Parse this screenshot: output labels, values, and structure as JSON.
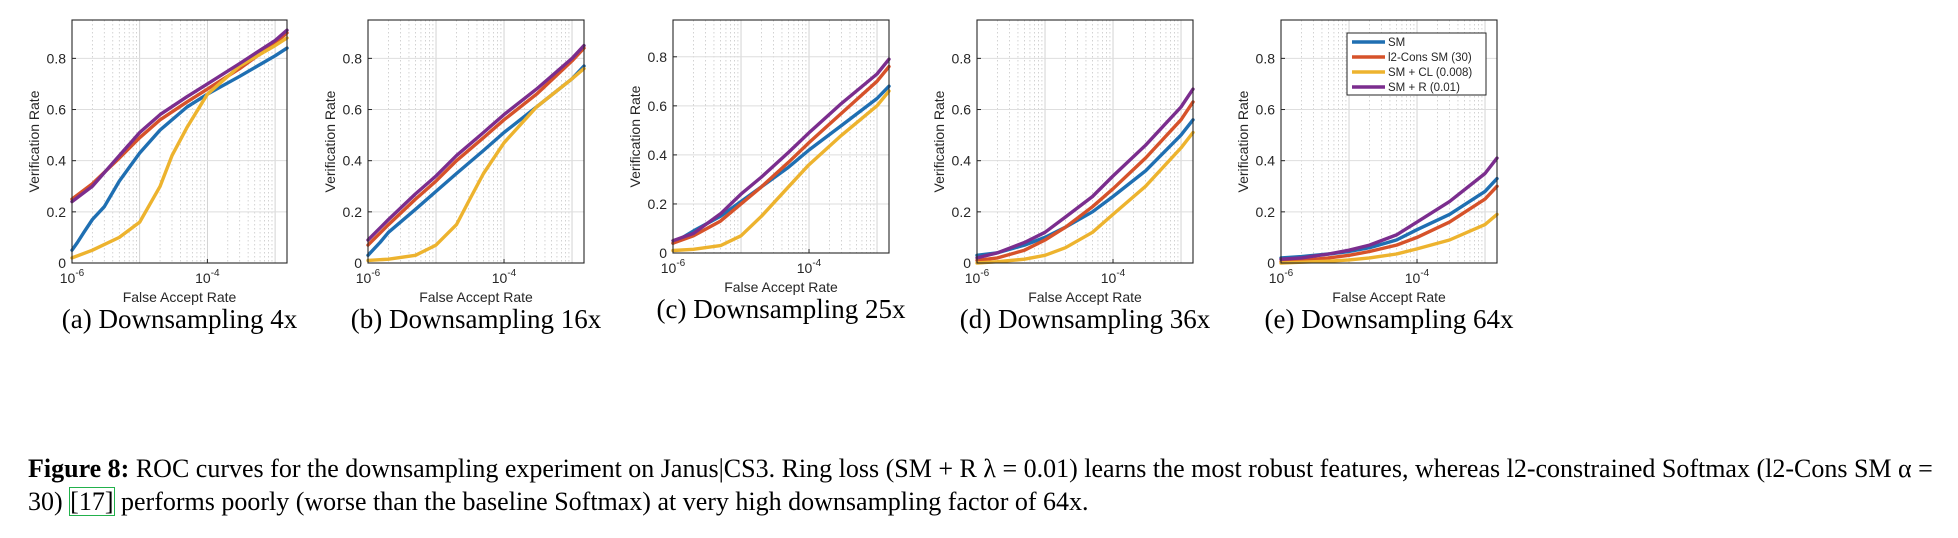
{
  "figure": {
    "caption_label": "Figure 8:",
    "caption_part1": "ROC curves for the downsampling experiment on Janus|CS3. Ring loss (SM + R λ = 0.01) learns the most robust features, whereas l2-constrained Softmax (l2-Cons SM α = 30)",
    "caption_ref": "[17]",
    "caption_part2": "performs poorly (worse than the baseline Softmax) at very high downsampling factor of 64x."
  },
  "colors": {
    "SM": "#1f6fb2",
    "l2-Cons SM (30)": "#d6522a",
    "SM + CL (0.008)": "#edb32e",
    "SM + R (0.01)": "#7b2d8e",
    "grid": "#c8c8c8"
  },
  "legend": {
    "entries": [
      "SM",
      "l2-Cons SM (30)",
      "SM + CL (0.008)",
      "SM + R (0.01)"
    ],
    "shown_in_panel": 4,
    "position": "top-right"
  },
  "chart_data": [
    {
      "type": "line",
      "caption": "(a)  Downsampling 4x",
      "xlabel": "False Accept Rate",
      "ylabel": "Verification Rate",
      "x_scale": "log",
      "xlim": [
        1e-06,
        0.0015
      ],
      "ylim": [
        0,
        0.95
      ],
      "x_ticks": [
        {
          "value": 1e-06,
          "base": "10",
          "exp": "-6"
        },
        {
          "value": 0.0001,
          "base": "10",
          "exp": "-4"
        }
      ],
      "y_ticks": [
        "0",
        "0.2",
        "0.4",
        "0.6",
        "0.8"
      ],
      "grid": true,
      "series": [
        {
          "name": "SM",
          "x": [
            1e-06,
            1.2e-06,
            1.5e-06,
            2e-06,
            3e-06,
            5e-06,
            1e-05,
            2e-05,
            5e-05,
            0.0001,
            0.0003,
            0.001,
            0.0015
          ],
          "y": [
            0.05,
            0.08,
            0.12,
            0.17,
            0.22,
            0.32,
            0.43,
            0.52,
            0.61,
            0.66,
            0.73,
            0.81,
            0.84
          ]
        },
        {
          "name": "l2-Cons SM (30)",
          "x": [
            1e-06,
            2e-06,
            5e-06,
            1e-05,
            2e-05,
            5e-05,
            0.0001,
            0.0003,
            0.001,
            0.0015
          ],
          "y": [
            0.25,
            0.31,
            0.41,
            0.49,
            0.56,
            0.63,
            0.68,
            0.76,
            0.86,
            0.9
          ]
        },
        {
          "name": "SM + CL (0.008)",
          "x": [
            1e-06,
            2e-06,
            5e-06,
            1e-05,
            2e-05,
            3e-05,
            5e-05,
            0.0001,
            0.0003,
            0.001,
            0.0015
          ],
          "y": [
            0.02,
            0.05,
            0.1,
            0.16,
            0.3,
            0.42,
            0.53,
            0.66,
            0.77,
            0.85,
            0.88
          ]
        },
        {
          "name": "SM + R (0.01)",
          "x": [
            1e-06,
            2e-06,
            5e-06,
            1e-05,
            2e-05,
            5e-05,
            0.0001,
            0.0003,
            0.001,
            0.0015
          ],
          "y": [
            0.24,
            0.3,
            0.42,
            0.51,
            0.58,
            0.65,
            0.7,
            0.78,
            0.87,
            0.91
          ]
        }
      ]
    },
    {
      "type": "line",
      "caption": "(b)  Downsampling 16x",
      "xlabel": "False Accept Rate",
      "ylabel": "Verification Rate",
      "x_scale": "log",
      "xlim": [
        1e-06,
        0.0015
      ],
      "ylim": [
        0,
        0.95
      ],
      "x_ticks": [
        {
          "value": 1e-06,
          "base": "10",
          "exp": "-6"
        },
        {
          "value": 0.0001,
          "base": "10",
          "exp": "-4"
        }
      ],
      "y_ticks": [
        "0",
        "0.2",
        "0.4",
        "0.6",
        "0.8"
      ],
      "grid": true,
      "series": [
        {
          "name": "SM",
          "x": [
            1e-06,
            1.5e-06,
            2e-06,
            5e-06,
            1e-05,
            2e-05,
            5e-05,
            0.0001,
            0.0003,
            0.001,
            0.0015
          ],
          "y": [
            0.03,
            0.08,
            0.12,
            0.21,
            0.28,
            0.35,
            0.44,
            0.51,
            0.61,
            0.72,
            0.77
          ]
        },
        {
          "name": "l2-Cons SM (30)",
          "x": [
            1e-06,
            2e-06,
            5e-06,
            1e-05,
            2e-05,
            5e-05,
            0.0001,
            0.0003,
            0.001,
            0.0015
          ],
          "y": [
            0.07,
            0.15,
            0.25,
            0.32,
            0.4,
            0.49,
            0.56,
            0.66,
            0.79,
            0.84
          ]
        },
        {
          "name": "SM + CL (0.008)",
          "x": [
            1e-06,
            2e-06,
            5e-06,
            1e-05,
            2e-05,
            3e-05,
            5e-05,
            0.0001,
            0.0003,
            0.001,
            0.0015
          ],
          "y": [
            0.01,
            0.015,
            0.03,
            0.07,
            0.15,
            0.24,
            0.35,
            0.47,
            0.61,
            0.72,
            0.76
          ]
        },
        {
          "name": "SM + R (0.01)",
          "x": [
            1e-06,
            2e-06,
            5e-06,
            1e-05,
            2e-05,
            5e-05,
            0.0001,
            0.0003,
            0.001,
            0.0015
          ],
          "y": [
            0.09,
            0.17,
            0.27,
            0.34,
            0.42,
            0.51,
            0.58,
            0.68,
            0.8,
            0.85
          ]
        }
      ]
    },
    {
      "type": "line",
      "caption": "(c)  Downsampling 25x",
      "xlabel": "False Accept Rate",
      "ylabel": "Verification Rate",
      "x_scale": "log",
      "xlim": [
        1e-06,
        0.0015
      ],
      "ylim": [
        0,
        0.95
      ],
      "x_ticks": [
        {
          "value": 1e-06,
          "base": "10",
          "exp": "-6"
        },
        {
          "value": 0.0001,
          "base": "10",
          "exp": "-4"
        }
      ],
      "y_ticks": [
        "0",
        "0.2",
        "0.4",
        "0.6",
        "0.8"
      ],
      "grid": true,
      "series": [
        {
          "name": "SM",
          "x": [
            1e-06,
            2e-06,
            5e-06,
            1e-05,
            2e-05,
            5e-05,
            0.0001,
            0.0003,
            0.001,
            0.0015
          ],
          "y": [
            0.04,
            0.09,
            0.15,
            0.21,
            0.27,
            0.35,
            0.42,
            0.52,
            0.63,
            0.68
          ]
        },
        {
          "name": "l2-Cons SM (30)",
          "x": [
            1e-06,
            2e-06,
            5e-06,
            1e-05,
            2e-05,
            5e-05,
            0.0001,
            0.0003,
            0.001,
            0.0015
          ],
          "y": [
            0.04,
            0.07,
            0.13,
            0.2,
            0.27,
            0.37,
            0.45,
            0.57,
            0.7,
            0.76
          ]
        },
        {
          "name": "SM + CL (0.008)",
          "x": [
            1e-06,
            2e-06,
            5e-06,
            1e-05,
            2e-05,
            5e-05,
            0.0001,
            0.0003,
            0.001,
            0.0015
          ],
          "y": [
            0.01,
            0.015,
            0.03,
            0.07,
            0.15,
            0.27,
            0.36,
            0.48,
            0.6,
            0.66
          ]
        },
        {
          "name": "SM + R (0.01)",
          "x": [
            1e-06,
            2e-06,
            5e-06,
            1e-05,
            2e-05,
            5e-05,
            0.0001,
            0.0003,
            0.001,
            0.0015
          ],
          "y": [
            0.05,
            0.08,
            0.16,
            0.24,
            0.31,
            0.41,
            0.49,
            0.61,
            0.73,
            0.79
          ]
        }
      ]
    },
    {
      "type": "line",
      "caption": "(d)  Downsampling 36x",
      "xlabel": "False Accept Rate",
      "ylabel": "Verification Rate",
      "x_scale": "log",
      "xlim": [
        1e-06,
        0.0015
      ],
      "ylim": [
        0,
        0.95
      ],
      "x_ticks": [
        {
          "value": 1e-06,
          "base": "10",
          "exp": "-6"
        },
        {
          "value": 0.0001,
          "base": "10",
          "exp": "-4"
        }
      ],
      "y_ticks": [
        "0",
        "0.2",
        "0.4",
        "0.6",
        "0.8"
      ],
      "grid": true,
      "series": [
        {
          "name": "SM",
          "x": [
            1e-06,
            2e-06,
            5e-06,
            1e-05,
            2e-05,
            5e-05,
            0.0001,
            0.0003,
            0.001,
            0.0015
          ],
          "y": [
            0.03,
            0.04,
            0.07,
            0.1,
            0.14,
            0.2,
            0.26,
            0.36,
            0.5,
            0.56
          ]
        },
        {
          "name": "l2-Cons SM (30)",
          "x": [
            1e-06,
            2e-06,
            5e-06,
            1e-05,
            2e-05,
            5e-05,
            0.0001,
            0.0003,
            0.001,
            0.0015
          ],
          "y": [
            0.01,
            0.02,
            0.05,
            0.09,
            0.14,
            0.22,
            0.29,
            0.41,
            0.56,
            0.63
          ]
        },
        {
          "name": "SM + CL (0.008)",
          "x": [
            1e-06,
            2e-06,
            5e-06,
            1e-05,
            2e-05,
            5e-05,
            0.0001,
            0.0003,
            0.001,
            0.0015
          ],
          "y": [
            0.0,
            0.005,
            0.015,
            0.03,
            0.06,
            0.12,
            0.19,
            0.3,
            0.45,
            0.51
          ]
        },
        {
          "name": "SM + R (0.01)",
          "x": [
            1e-06,
            2e-06,
            5e-06,
            1e-05,
            2e-05,
            5e-05,
            0.0001,
            0.0003,
            0.001,
            0.0015
          ],
          "y": [
            0.02,
            0.04,
            0.08,
            0.12,
            0.18,
            0.26,
            0.34,
            0.46,
            0.61,
            0.68
          ]
        }
      ]
    },
    {
      "type": "line",
      "caption": "(e)  Downsampling 64x",
      "xlabel": "False Accept Rate",
      "ylabel": "Verification Rate",
      "x_scale": "log",
      "xlim": [
        1e-06,
        0.0015
      ],
      "ylim": [
        0,
        0.95
      ],
      "x_ticks": [
        {
          "value": 1e-06,
          "base": "10",
          "exp": "-6"
        },
        {
          "value": 0.0001,
          "base": "10",
          "exp": "-4"
        }
      ],
      "y_ticks": [
        "0",
        "0.2",
        "0.4",
        "0.6",
        "0.8"
      ],
      "grid": true,
      "legend": [
        "SM",
        "l2-Cons SM (30)",
        "SM + CL (0.008)",
        "SM + R (0.01)"
      ],
      "series": [
        {
          "name": "SM",
          "x": [
            1e-06,
            2e-06,
            5e-06,
            1e-05,
            2e-05,
            5e-05,
            0.0001,
            0.0003,
            0.001,
            0.0015
          ],
          "y": [
            0.02,
            0.025,
            0.035,
            0.045,
            0.06,
            0.09,
            0.13,
            0.19,
            0.28,
            0.33
          ]
        },
        {
          "name": "l2-Cons SM (30)",
          "x": [
            1e-06,
            2e-06,
            5e-06,
            1e-05,
            2e-05,
            5e-05,
            0.0001,
            0.0003,
            0.001,
            0.0015
          ],
          "y": [
            0.005,
            0.01,
            0.02,
            0.03,
            0.045,
            0.07,
            0.1,
            0.16,
            0.25,
            0.3
          ]
        },
        {
          "name": "SM + CL (0.008)",
          "x": [
            1e-06,
            2e-06,
            5e-06,
            1e-05,
            2e-05,
            5e-05,
            0.0001,
            0.0003,
            0.001,
            0.0015
          ],
          "y": [
            0.0,
            0.003,
            0.007,
            0.012,
            0.02,
            0.035,
            0.055,
            0.09,
            0.15,
            0.19
          ]
        },
        {
          "name": "SM + R (0.01)",
          "x": [
            1e-06,
            2e-06,
            5e-06,
            1e-05,
            2e-05,
            5e-05,
            0.0001,
            0.0003,
            0.001,
            0.0015
          ],
          "y": [
            0.015,
            0.02,
            0.035,
            0.05,
            0.07,
            0.11,
            0.16,
            0.24,
            0.35,
            0.41
          ]
        }
      ]
    }
  ]
}
